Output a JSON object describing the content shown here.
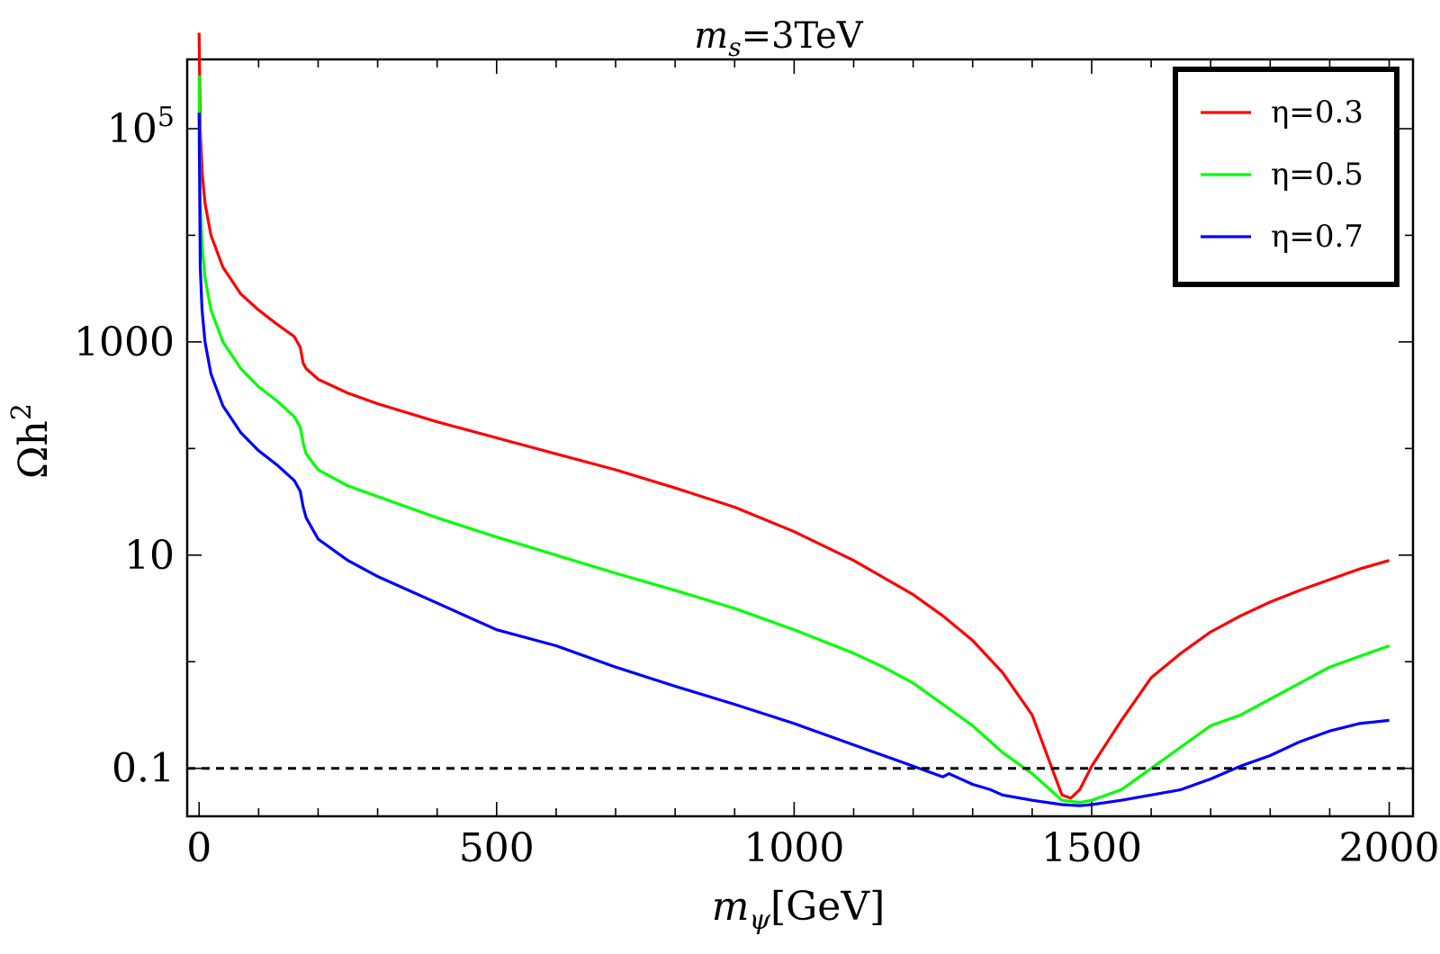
{
  "chart_data": {
    "type": "line",
    "title": {
      "main": "m",
      "sub": "s",
      "rest": "=3TeV"
    },
    "xlabel": {
      "main": "m",
      "sub": "ψ",
      "rest": "[GeV]"
    },
    "ylabel": {
      "main": "Ωh",
      "sup": "2"
    },
    "xlim": [
      -20,
      2040
    ],
    "ylim_log10": [
      -1.45,
      5.65
    ],
    "x_ticks": [
      {
        "value": 0,
        "label": "0"
      },
      {
        "value": 500,
        "label": "500"
      },
      {
        "value": 1000,
        "label": "1000"
      },
      {
        "value": 1500,
        "label": "1500"
      },
      {
        "value": 2000,
        "label": "2000"
      }
    ],
    "y_ticks": [
      {
        "log10": -1,
        "label": "0.1"
      },
      {
        "log10": 1,
        "label": "10"
      },
      {
        "log10": 3,
        "label": "1000"
      },
      {
        "log10": 5,
        "label": "10",
        "sup": "5"
      }
    ],
    "reference_line": {
      "y": 0.1,
      "style": "dashed",
      "color": "#000000"
    },
    "legend": {
      "position": "top-right"
    },
    "series": [
      {
        "name": "η=0.3",
        "color": "#ff0000",
        "points": [
          [
            0,
            5.9
          ],
          [
            2,
            5.0
          ],
          [
            5,
            4.6
          ],
          [
            10,
            4.3
          ],
          [
            20,
            4.0
          ],
          [
            40,
            3.7
          ],
          [
            70,
            3.45
          ],
          [
            100,
            3.3
          ],
          [
            130,
            3.17
          ],
          [
            160,
            3.05
          ],
          [
            170,
            2.95
          ],
          [
            175,
            2.8
          ],
          [
            180,
            2.75
          ],
          [
            200,
            2.65
          ],
          [
            250,
            2.52
          ],
          [
            300,
            2.42
          ],
          [
            400,
            2.25
          ],
          [
            500,
            2.1
          ],
          [
            600,
            1.95
          ],
          [
            700,
            1.8
          ],
          [
            800,
            1.63
          ],
          [
            900,
            1.45
          ],
          [
            1000,
            1.22
          ],
          [
            1100,
            0.95
          ],
          [
            1200,
            0.63
          ],
          [
            1250,
            0.43
          ],
          [
            1300,
            0.2
          ],
          [
            1350,
            -0.1
          ],
          [
            1400,
            -0.5
          ],
          [
            1450,
            -1.25
          ],
          [
            1465,
            -1.28
          ],
          [
            1480,
            -1.2
          ],
          [
            1500,
            -0.98
          ],
          [
            1550,
            -0.55
          ],
          [
            1600,
            -0.15
          ],
          [
            1650,
            0.08
          ],
          [
            1700,
            0.28
          ],
          [
            1750,
            0.43
          ],
          [
            1800,
            0.56
          ],
          [
            1850,
            0.67
          ],
          [
            1900,
            0.77
          ],
          [
            1950,
            0.87
          ],
          [
            2000,
            0.95
          ]
        ]
      },
      {
        "name": "η=0.5",
        "color": "#00ff00",
        "points": [
          [
            0,
            5.5
          ],
          [
            2,
            4.3
          ],
          [
            5,
            3.9
          ],
          [
            10,
            3.6
          ],
          [
            20,
            3.3
          ],
          [
            40,
            3.0
          ],
          [
            70,
            2.75
          ],
          [
            100,
            2.58
          ],
          [
            130,
            2.45
          ],
          [
            160,
            2.3
          ],
          [
            170,
            2.2
          ],
          [
            175,
            2.05
          ],
          [
            180,
            1.95
          ],
          [
            200,
            1.8
          ],
          [
            250,
            1.65
          ],
          [
            300,
            1.55
          ],
          [
            400,
            1.35
          ],
          [
            500,
            1.17
          ],
          [
            600,
            1.0
          ],
          [
            700,
            0.83
          ],
          [
            800,
            0.67
          ],
          [
            900,
            0.5
          ],
          [
            1000,
            0.3
          ],
          [
            1100,
            0.08
          ],
          [
            1150,
            -0.05
          ],
          [
            1200,
            -0.2
          ],
          [
            1250,
            -0.4
          ],
          [
            1300,
            -0.6
          ],
          [
            1350,
            -0.85
          ],
          [
            1400,
            -1.05
          ],
          [
            1450,
            -1.3
          ],
          [
            1480,
            -1.32
          ],
          [
            1500,
            -1.3
          ],
          [
            1550,
            -1.2
          ],
          [
            1600,
            -1.0
          ],
          [
            1650,
            -0.8
          ],
          [
            1700,
            -0.6
          ],
          [
            1750,
            -0.5
          ],
          [
            1800,
            -0.35
          ],
          [
            1850,
            -0.2
          ],
          [
            1900,
            -0.05
          ],
          [
            1950,
            0.05
          ],
          [
            2000,
            0.15
          ]
        ]
      },
      {
        "name": "η=0.7",
        "color": "#0000ff",
        "points": [
          [
            0,
            5.15
          ],
          [
            2,
            3.7
          ],
          [
            5,
            3.3
          ],
          [
            10,
            3.0
          ],
          [
            20,
            2.7
          ],
          [
            40,
            2.4
          ],
          [
            70,
            2.15
          ],
          [
            100,
            1.98
          ],
          [
            130,
            1.85
          ],
          [
            160,
            1.7
          ],
          [
            170,
            1.6
          ],
          [
            175,
            1.45
          ],
          [
            180,
            1.35
          ],
          [
            200,
            1.15
          ],
          [
            250,
            0.95
          ],
          [
            300,
            0.8
          ],
          [
            400,
            0.55
          ],
          [
            500,
            0.3
          ],
          [
            600,
            0.15
          ],
          [
            700,
            -0.05
          ],
          [
            800,
            -0.23
          ],
          [
            900,
            -0.4
          ],
          [
            1000,
            -0.58
          ],
          [
            1100,
            -0.78
          ],
          [
            1200,
            -0.98
          ],
          [
            1250,
            -1.08
          ],
          [
            1260,
            -1.05
          ],
          [
            1300,
            -1.15
          ],
          [
            1330,
            -1.2
          ],
          [
            1350,
            -1.25
          ],
          [
            1400,
            -1.3
          ],
          [
            1450,
            -1.34
          ],
          [
            1480,
            -1.35
          ],
          [
            1500,
            -1.34
          ],
          [
            1550,
            -1.3
          ],
          [
            1600,
            -1.25
          ],
          [
            1650,
            -1.2
          ],
          [
            1700,
            -1.1
          ],
          [
            1750,
            -0.98
          ],
          [
            1800,
            -0.88
          ],
          [
            1850,
            -0.75
          ],
          [
            1900,
            -0.65
          ],
          [
            1950,
            -0.58
          ],
          [
            2000,
            -0.55
          ]
        ]
      }
    ]
  }
}
